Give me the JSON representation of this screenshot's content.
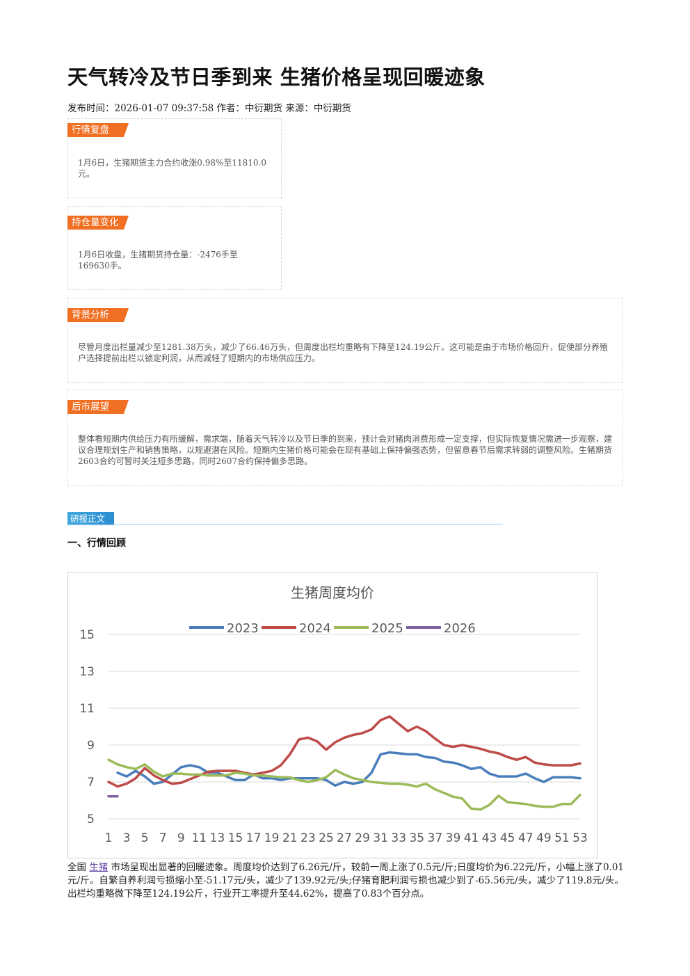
{
  "article": {
    "title": "天气转冷及节日季到来 生猪价格呈现回暖迹象",
    "meta": "发布时间：2026-01-07 09:37:58 作者：中衍期货 来源：中衍期货"
  },
  "sections": {
    "market_review": {
      "tag": "行情复盘",
      "text": "1月6日，生猪期货主力合约收涨0.98%至11810.0元。"
    },
    "open_interest": {
      "tag": "持仓量变化",
      "text": "1月6日收盘，生猪期货持仓量：-2476手至169630手。"
    },
    "background": {
      "tag": "背景分析",
      "text": "尽管月度出栏量减少至1281.38万头，减少了66.46万头，但周度出栏均重略有下降至124.19公斤。这可能是由于市场价格回升，促使部分养殖户选择提前出栏以锁定利润，从而减轻了短期内的市场供应压力。"
    },
    "outlook": {
      "tag": "后市展望",
      "text": "整体看短期内供给压力有所缓解，需求端，随着天气转冷以及节日季的到来，预计会对猪肉消费形成一定支撑，但实际恢复情况需进一步观察，建议合理规划生产和销售策略，以规避潜在风险。短期内生猪价格可能会在现有基础上保持偏强态势，但留意春节后需求转弱的调整风险。生猪期货2603合约可暂时关注短多思路，同时2607合约保持偏多思路。"
    }
  },
  "report": {
    "tag": "研报正文",
    "heading": "一、行情回顾"
  },
  "body_paragraph": {
    "prefix": "全国",
    "link": "生猪",
    "text": "市场呈现出显著的回暖迹象。周度均价达到了6.26元/斤，较前一周上涨了0.5元/斤;日度均价为6.22元/斤，小幅上涨了0.01元/斤。自繁自养利润亏损缩小至-51.17元/头，减少了139.92元/头;仔猪育肥利润亏损也减少到了-65.56元/头，减少了119.8元/头。出栏均重略微下降至124.19公斤，行业开工率提升至44.62%，提高了0.83个百分点。"
  },
  "chart_data": {
    "type": "line",
    "title": "生猪周度均价",
    "ylim": [
      5,
      15
    ],
    "yticks": [
      5,
      7,
      9,
      11,
      13,
      15
    ],
    "xticks": [
      1,
      3,
      5,
      7,
      9,
      11,
      13,
      15,
      17,
      19,
      21,
      23,
      25,
      27,
      29,
      31,
      33,
      35,
      37,
      39,
      41,
      43,
      45,
      47,
      49,
      51,
      53
    ],
    "grid": true,
    "legend_position": "top",
    "series": [
      {
        "name": "2023",
        "color": "#4a7ebb",
        "x": [
          2,
          3,
          4,
          5,
          6,
          7,
          8,
          9,
          10,
          11,
          12,
          13,
          14,
          15,
          16,
          17,
          18,
          19,
          20,
          21,
          22,
          23,
          24,
          25,
          26,
          27,
          28,
          29,
          30,
          31,
          32,
          33,
          34,
          35,
          36,
          37,
          38,
          39,
          40,
          41,
          42,
          43,
          44,
          45,
          46,
          47,
          48,
          49,
          50,
          51,
          52,
          53
        ],
        "y": [
          7.5,
          7.3,
          7.6,
          7.3,
          6.9,
          7.0,
          7.4,
          7.8,
          7.9,
          7.8,
          7.5,
          7.5,
          7.3,
          7.1,
          7.1,
          7.4,
          7.2,
          7.2,
          7.1,
          7.2,
          7.2,
          7.2,
          7.2,
          7.1,
          6.8,
          7.0,
          6.9,
          7.0,
          7.5,
          8.5,
          8.6,
          8.55,
          8.5,
          8.5,
          8.35,
          8.3,
          8.1,
          8.05,
          7.9,
          7.7,
          7.8,
          7.45,
          7.3,
          7.3,
          7.3,
          7.45,
          7.2,
          7.0,
          7.25,
          7.25,
          7.25,
          7.2
        ]
      },
      {
        "name": "2024",
        "color": "#be4b48",
        "x": [
          1,
          2,
          3,
          4,
          5,
          6,
          7,
          8,
          9,
          10,
          11,
          12,
          13,
          14,
          15,
          16,
          17,
          18,
          19,
          20,
          21,
          22,
          23,
          24,
          25,
          26,
          27,
          28,
          29,
          30,
          31,
          32,
          33,
          34,
          35,
          36,
          37,
          38,
          39,
          40,
          41,
          42,
          43,
          44,
          45,
          46,
          47,
          48,
          49,
          50,
          51,
          52,
          53
        ],
        "y": [
          7.0,
          6.75,
          6.9,
          7.2,
          7.75,
          7.35,
          7.1,
          6.9,
          6.95,
          7.15,
          7.35,
          7.55,
          7.6,
          7.6,
          7.6,
          7.5,
          7.4,
          7.5,
          7.6,
          7.9,
          8.5,
          9.3,
          9.4,
          9.2,
          8.75,
          9.15,
          9.4,
          9.55,
          9.65,
          9.85,
          10.35,
          10.55,
          10.15,
          9.75,
          10.0,
          9.75,
          9.35,
          9.0,
          8.9,
          9.0,
          8.9,
          8.8,
          8.65,
          8.55,
          8.35,
          8.2,
          8.35,
          8.05,
          7.95,
          7.9,
          7.9,
          7.9,
          8.0
        ]
      },
      {
        "name": "2025",
        "color": "#9bbb59",
        "x": [
          1,
          2,
          3,
          4,
          5,
          6,
          7,
          8,
          9,
          10,
          11,
          12,
          13,
          14,
          15,
          16,
          17,
          18,
          19,
          20,
          21,
          22,
          23,
          24,
          25,
          26,
          27,
          28,
          29,
          30,
          31,
          32,
          33,
          34,
          35,
          36,
          37,
          38,
          39,
          40,
          41,
          42,
          43,
          44,
          45,
          46,
          47,
          48,
          49,
          50,
          51,
          52,
          53
        ],
        "y": [
          8.2,
          7.95,
          7.8,
          7.7,
          7.95,
          7.55,
          7.3,
          7.45,
          7.45,
          7.4,
          7.4,
          7.35,
          7.35,
          7.35,
          7.5,
          7.45,
          7.35,
          7.35,
          7.3,
          7.25,
          7.25,
          7.1,
          7.0,
          7.1,
          7.25,
          7.65,
          7.4,
          7.2,
          7.1,
          7.0,
          6.95,
          6.9,
          6.9,
          6.85,
          6.75,
          6.9,
          6.6,
          6.4,
          6.2,
          6.1,
          5.55,
          5.5,
          5.75,
          6.25,
          5.9,
          5.85,
          5.8,
          5.7,
          5.65,
          5.65,
          5.8,
          5.8,
          6.3
        ]
      },
      {
        "name": "2026",
        "color": "#8064a2",
        "x": [
          1,
          2
        ],
        "y": [
          6.22,
          6.22
        ]
      }
    ]
  }
}
